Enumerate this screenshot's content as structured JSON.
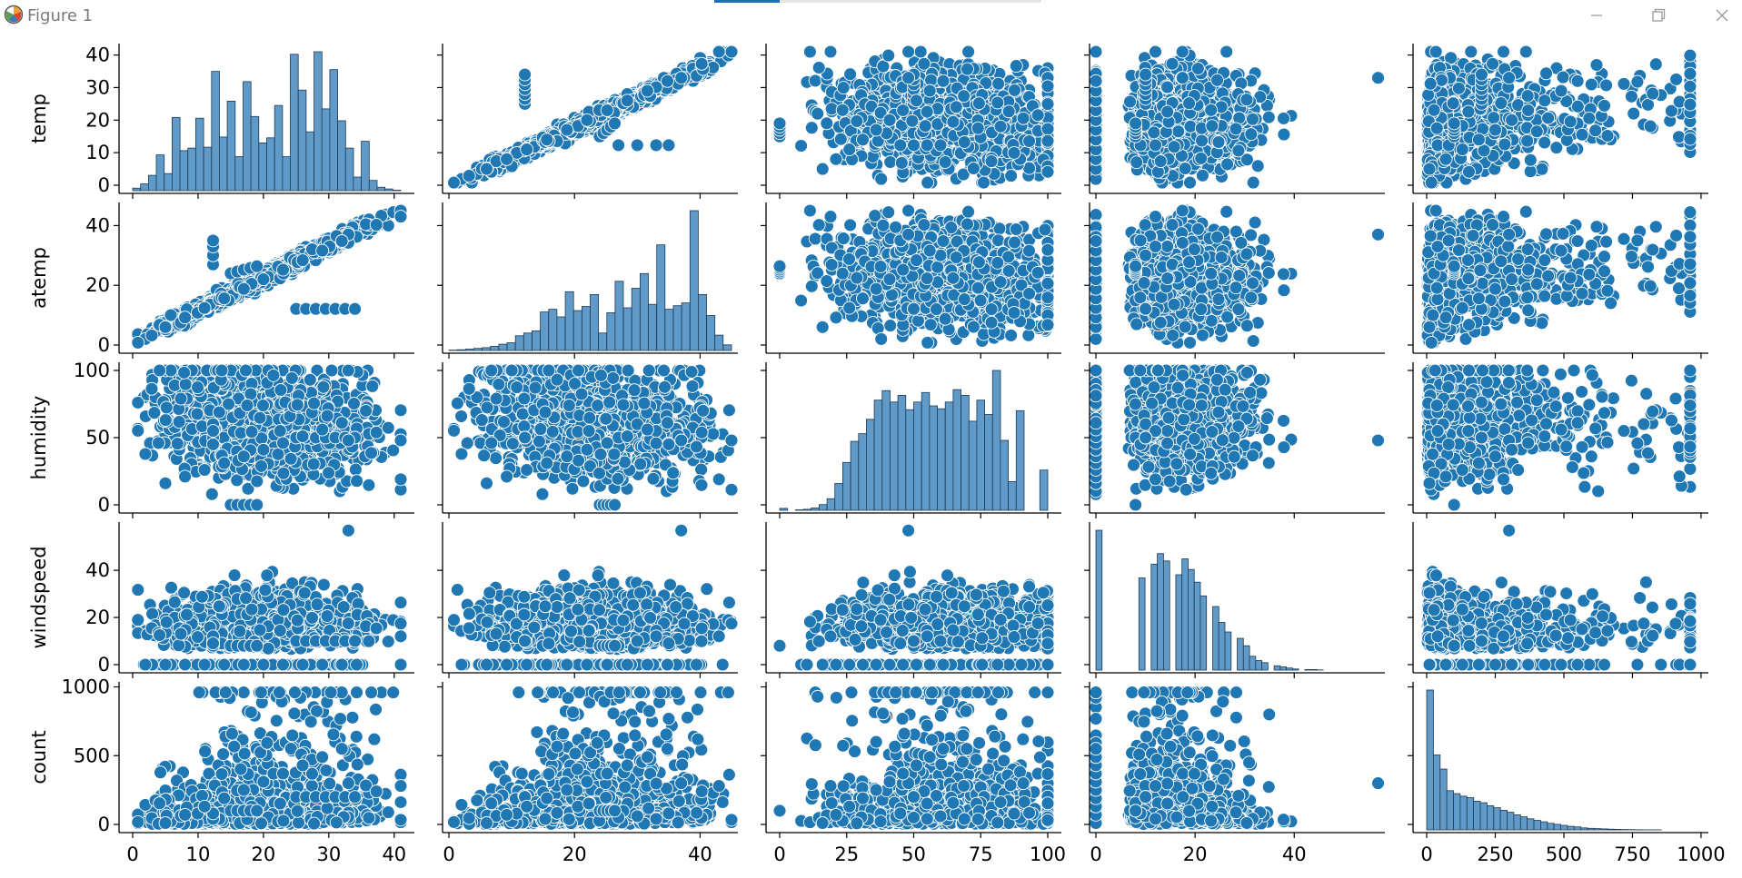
{
  "window": {
    "title": "Figure 1",
    "controls": [
      "minimize-icon",
      "restore-icon",
      "close-icon"
    ]
  },
  "chart_data": {
    "type": "scatter",
    "kind": "pairplot",
    "variables": [
      "temp",
      "atemp",
      "humidity",
      "windspeed",
      "count"
    ],
    "marker_color": "#1f77b4",
    "marker_edge_color": "#ffffff",
    "grid": false,
    "axes": {
      "temp": {
        "range": [
          0,
          41
        ],
        "ticks": [
          0,
          10,
          20,
          30,
          40
        ]
      },
      "atemp": {
        "range": [
          0,
          45
        ],
        "ticks": [
          0,
          20,
          40
        ]
      },
      "humidity": {
        "range": [
          0,
          100
        ],
        "ticks": [
          0,
          50,
          100
        ],
        "xticks": [
          0,
          25,
          50,
          75,
          100
        ]
      },
      "windspeed": {
        "range": [
          0,
          57
        ],
        "ticks": [
          0,
          20,
          40
        ]
      },
      "count": {
        "range": [
          0,
          977
        ],
        "ticks": [
          0,
          500,
          1000
        ],
        "xticks": [
          0,
          250,
          500,
          750,
          1000
        ]
      }
    },
    "histograms": {
      "temp": {
        "bins": 34,
        "counts": [
          30,
          80,
          180,
          420,
          200,
          860,
          470,
          500,
          850,
          510,
          1400,
          630,
          1050,
          400,
          1280,
          870,
          560,
          620,
          1000,
          400,
          1600,
          1180,
          690,
          1630,
          960,
          1420,
          820,
          500,
          160,
          580,
          120,
          40,
          20,
          5
        ]
      },
      "atemp": {
        "bins": 34,
        "counts": [
          5,
          10,
          20,
          30,
          40,
          60,
          90,
          110,
          210,
          250,
          280,
          550,
          590,
          480,
          840,
          570,
          630,
          800,
          250,
          540,
          990,
          610,
          890,
          1100,
          660,
          1510,
          590,
          640,
          680,
          2000,
          800,
          500,
          220,
          80
        ]
      },
      "humidity": {
        "bins": 34,
        "counts": [
          20,
          0,
          5,
          10,
          25,
          60,
          120,
          280,
          500,
          720,
          800,
          950,
          1150,
          1250,
          1130,
          1200,
          1050,
          1130,
          1230,
          1090,
          1060,
          1130,
          1260,
          1200,
          930,
          1150,
          1000,
          1460,
          730,
          300,
          1040,
          0,
          0,
          420
        ]
      },
      "windspeed": {
        "bins": 46,
        "counts": [
          1320,
          0,
          0,
          0,
          0,
          0,
          0,
          870,
          0,
          1000,
          1100,
          1030,
          0,
          900,
          1050,
          950,
          830,
          700,
          0,
          600,
          450,
          360,
          0,
          300,
          230,
          130,
          90,
          70,
          0,
          40,
          30,
          20,
          10,
          0,
          5,
          5,
          2,
          0,
          0,
          0,
          0,
          0,
          0,
          0,
          0,
          0
        ]
      },
      "count": {
        "bins": 40,
        "counts": [
          2780,
          1490,
          1210,
          780,
          720,
          670,
          640,
          570,
          540,
          480,
          440,
          390,
          350,
          300,
          260,
          220,
          190,
          160,
          130,
          110,
          90,
          70,
          60,
          40,
          30,
          25,
          20,
          15,
          10,
          8,
          5,
          3,
          2,
          1,
          1,
          0,
          0,
          0,
          0,
          0
        ]
      }
    }
  }
}
